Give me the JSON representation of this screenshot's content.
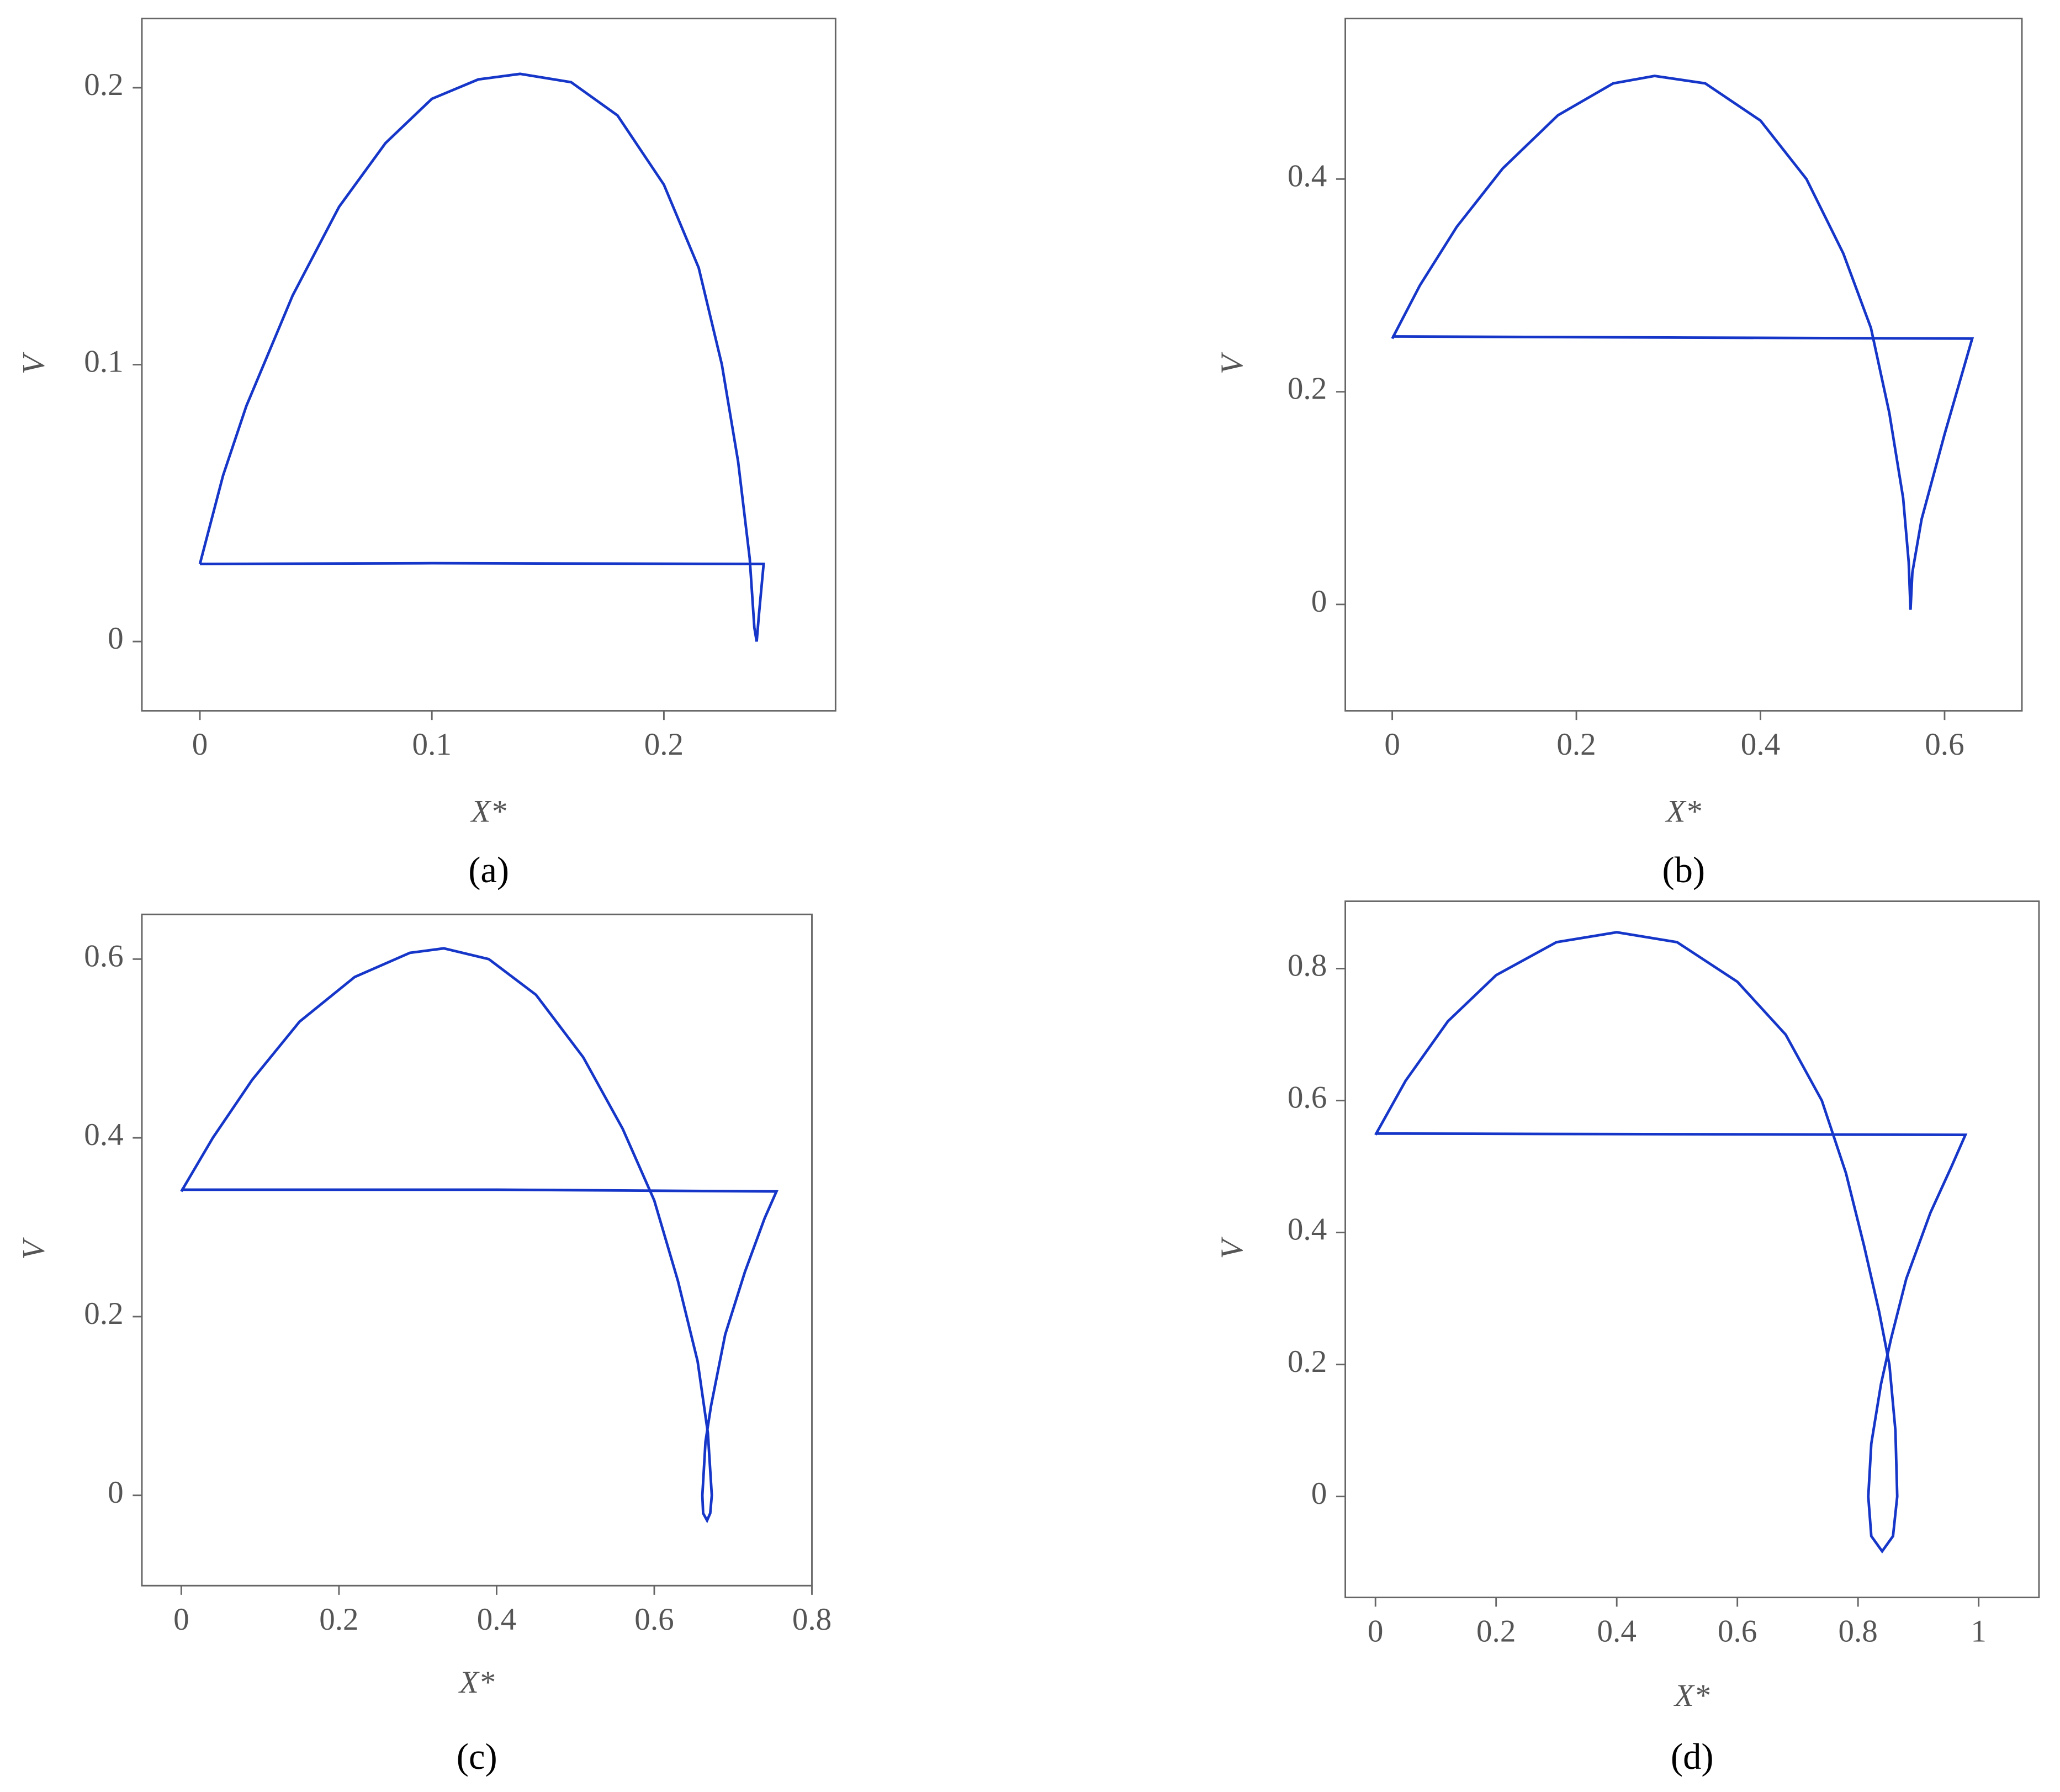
{
  "chart_data": [
    {
      "type": "line",
      "label": "(a)",
      "xlabel": "X*",
      "ylabel": "V",
      "color": "#1536c8",
      "x": [
        0,
        0.01,
        0.02,
        0.04,
        0.06,
        0.08,
        0.1,
        0.12,
        0.138,
        0.16,
        0.18,
        0.2,
        0.215,
        0.225,
        0.232,
        0.237,
        0.239,
        0.24,
        0.241,
        0.243,
        0.1,
        0
      ],
      "values": [
        0.028,
        0.06,
        0.085,
        0.125,
        0.157,
        0.18,
        0.196,
        0.203,
        0.205,
        0.202,
        0.19,
        0.165,
        0.135,
        0.1,
        0.065,
        0.03,
        0.005,
        0,
        0.01,
        0.028,
        0.0283,
        0.028
      ],
      "xlim": [
        -0.025,
        0.274
      ],
      "ylim": [
        -0.025,
        0.225
      ],
      "xticks": [
        0,
        0.1,
        0.2
      ],
      "yticks": [
        0,
        0.1,
        0.2
      ]
    },
    {
      "type": "line",
      "label": "(b)",
      "xlabel": "X*",
      "ylabel": "V",
      "color": "#1536c8",
      "x": [
        0,
        0.03,
        0.07,
        0.12,
        0.18,
        0.24,
        0.285,
        0.34,
        0.4,
        0.45,
        0.49,
        0.52,
        0.54,
        0.555,
        0.561,
        0.563,
        0.565,
        0.575,
        0.6,
        0.63,
        0.3,
        0
      ],
      "values": [
        0.25,
        0.3,
        0.355,
        0.41,
        0.46,
        0.49,
        0.497,
        0.49,
        0.455,
        0.4,
        0.33,
        0.26,
        0.18,
        0.1,
        0.04,
        -0.005,
        0.03,
        0.08,
        0.16,
        0.25,
        0.251,
        0.252
      ],
      "xlim": [
        -0.051,
        0.684
      ],
      "ylim": [
        -0.1,
        0.551
      ],
      "xticks": [
        0,
        0.2,
        0.4,
        0.6
      ],
      "yticks": [
        0,
        0.2,
        0.4
      ]
    },
    {
      "type": "line",
      "label": "(c)",
      "xlabel": "X*",
      "ylabel": "V",
      "color": "#1536c8",
      "x": [
        0,
        0.04,
        0.09,
        0.15,
        0.22,
        0.29,
        0.333,
        0.39,
        0.45,
        0.51,
        0.56,
        0.6,
        0.63,
        0.655,
        0.668,
        0.673,
        0.671,
        0.667,
        0.662,
        0.661,
        0.665,
        0.672,
        0.69,
        0.715,
        0.74,
        0.755,
        0.4,
        0
      ],
      "values": [
        0.34,
        0.4,
        0.465,
        0.53,
        0.58,
        0.607,
        0.612,
        0.6,
        0.56,
        0.49,
        0.41,
        0.33,
        0.24,
        0.15,
        0.07,
        0,
        -0.02,
        -0.028,
        -0.02,
        0,
        0.06,
        0.1,
        0.18,
        0.25,
        0.31,
        0.34,
        0.342,
        0.342
      ],
      "xlim": [
        -0.05,
        0.8
      ],
      "ylim": [
        -0.101,
        0.65
      ],
      "xticks": [
        0,
        0.2,
        0.4,
        0.6,
        0.8
      ],
      "yticks": [
        0,
        0.2,
        0.4,
        0.6
      ]
    },
    {
      "type": "line",
      "label": "(d)",
      "xlabel": "X*",
      "ylabel": "V",
      "color": "#1536c8",
      "x": [
        0,
        0.05,
        0.12,
        0.2,
        0.3,
        0.4,
        0.5,
        0.6,
        0.68,
        0.74,
        0.78,
        0.81,
        0.835,
        0.852,
        0.862,
        0.865,
        0.858,
        0.84,
        0.822,
        0.817,
        0.822,
        0.838,
        0.855,
        0.88,
        0.92,
        0.955,
        0.978,
        0.5,
        0
      ],
      "values": [
        0.548,
        0.63,
        0.72,
        0.79,
        0.84,
        0.855,
        0.84,
        0.78,
        0.7,
        0.6,
        0.49,
        0.38,
        0.28,
        0.2,
        0.1,
        0,
        -0.06,
        -0.083,
        -0.06,
        0,
        0.08,
        0.17,
        0.24,
        0.33,
        0.43,
        0.5,
        0.548,
        0.549,
        0.55
      ],
      "xlim": [
        -0.05,
        1.1
      ],
      "ylim": [
        -0.153,
        0.902
      ],
      "xticks": [
        0,
        0.2,
        0.4,
        0.6,
        0.8,
        1
      ],
      "yticks": [
        0,
        0.2,
        0.4,
        0.6,
        0.8
      ]
    }
  ]
}
